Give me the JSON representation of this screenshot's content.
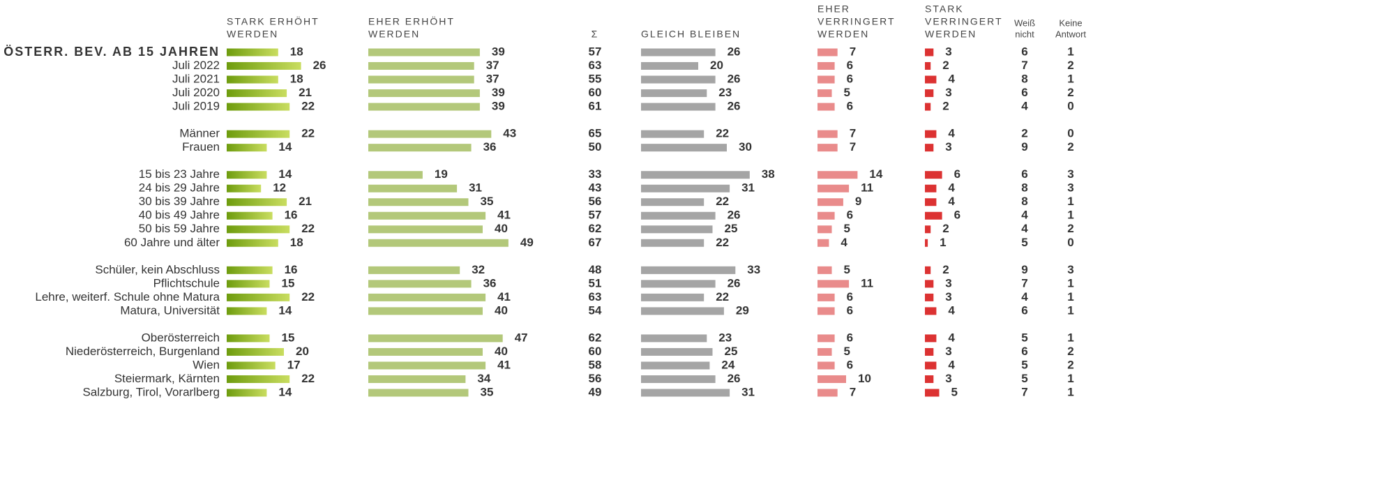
{
  "chart_data": {
    "type": "bar-table",
    "columns": [
      {
        "name": [
          "STARK ERHÖHT",
          "WERDEN"
        ],
        "kind": "bar",
        "color": [
          "#6e9c0e",
          "#c9dd60"
        ]
      },
      {
        "name": [
          "EHER ERHÖHT",
          "WERDEN"
        ],
        "kind": "bar",
        "color": "#b3c87a"
      },
      {
        "name": [
          "Σ"
        ],
        "kind": "number"
      },
      {
        "name": [
          "GLEICH BLEIBEN"
        ],
        "kind": "bar",
        "color": "#a5a5a5"
      },
      {
        "name": [
          "EHER",
          "VERRINGERT",
          "WERDEN"
        ],
        "kind": "bar",
        "color": "#e98b8b"
      },
      {
        "name": [
          "STARK",
          "VERRINGERT",
          "WERDEN"
        ],
        "kind": "bar",
        "color": "#dc3232"
      },
      {
        "name": [
          "Weiß",
          "nicht"
        ],
        "kind": "number"
      },
      {
        "name": [
          "Keine",
          "Antwort"
        ],
        "kind": "number"
      }
    ],
    "groups": [
      {
        "rows": [
          {
            "label": "ÖSTERR. BEV. AB 15 JAHREN",
            "values": [
              18,
              39,
              57,
              26,
              7,
              3,
              6,
              1
            ]
          },
          {
            "label": "Juli 2022",
            "values": [
              26,
              37,
              63,
              20,
              6,
              2,
              7,
              2
            ]
          },
          {
            "label": "Juli 2021",
            "values": [
              18,
              37,
              55,
              26,
              6,
              4,
              8,
              1
            ]
          },
          {
            "label": "Juli 2020",
            "values": [
              21,
              39,
              60,
              23,
              5,
              3,
              6,
              2
            ]
          },
          {
            "label": "Juli 2019",
            "values": [
              22,
              39,
              61,
              26,
              6,
              2,
              4,
              0
            ]
          }
        ]
      },
      {
        "rows": [
          {
            "label": "Männer",
            "values": [
              22,
              43,
              65,
              22,
              7,
              4,
              2,
              0
            ]
          },
          {
            "label": "Frauen",
            "values": [
              14,
              36,
              50,
              30,
              7,
              3,
              9,
              2
            ]
          }
        ]
      },
      {
        "rows": [
          {
            "label": "15 bis 23 Jahre",
            "values": [
              14,
              19,
              33,
              38,
              14,
              6,
              6,
              3
            ]
          },
          {
            "label": "24 bis 29 Jahre",
            "values": [
              12,
              31,
              43,
              31,
              11,
              4,
              8,
              3
            ]
          },
          {
            "label": "30 bis 39 Jahre",
            "values": [
              21,
              35,
              56,
              22,
              9,
              4,
              8,
              1
            ]
          },
          {
            "label": "40 bis 49 Jahre",
            "values": [
              16,
              41,
              57,
              26,
              6,
              6,
              4,
              1
            ]
          },
          {
            "label": "50 bis 59 Jahre",
            "values": [
              22,
              40,
              62,
              25,
              5,
              2,
              4,
              2
            ]
          },
          {
            "label": "60 Jahre und älter",
            "values": [
              18,
              49,
              67,
              22,
              4,
              1,
              5,
              0
            ]
          }
        ]
      },
      {
        "rows": [
          {
            "label": "Schüler, kein Abschluss",
            "values": [
              16,
              32,
              48,
              33,
              5,
              2,
              9,
              3
            ]
          },
          {
            "label": "Pflichtschule",
            "values": [
              15,
              36,
              51,
              26,
              11,
              3,
              7,
              1
            ]
          },
          {
            "label": "Lehre, weiterf. Schule ohne Matura",
            "values": [
              22,
              41,
              63,
              22,
              6,
              3,
              4,
              1
            ]
          },
          {
            "label": "Matura, Universität",
            "values": [
              14,
              40,
              54,
              29,
              6,
              4,
              6,
              1
            ]
          }
        ]
      },
      {
        "rows": [
          {
            "label": "Oberösterreich",
            "values": [
              15,
              47,
              62,
              23,
              6,
              4,
              5,
              1
            ]
          },
          {
            "label": "Niederösterreich, Burgenland",
            "values": [
              20,
              40,
              60,
              25,
              5,
              3,
              6,
              2
            ]
          },
          {
            "label": "Wien",
            "values": [
              17,
              41,
              58,
              24,
              6,
              4,
              5,
              2
            ]
          },
          {
            "label": "Steiermark, Kärnten",
            "values": [
              22,
              34,
              56,
              26,
              10,
              3,
              5,
              1
            ]
          },
          {
            "label": "Salzburg, Tirol, Vorarlberg",
            "values": [
              14,
              35,
              49,
              31,
              7,
              5,
              7,
              1
            ]
          }
        ]
      }
    ]
  }
}
